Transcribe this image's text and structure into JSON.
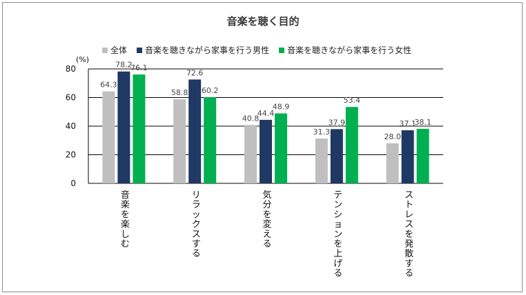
{
  "chart_data": {
    "type": "bar",
    "title": "音楽を聴く目的",
    "unit": "(%)",
    "ylim": [
      0,
      80
    ],
    "yticks": [
      0,
      20,
      40,
      60,
      80
    ],
    "grid": true,
    "legend_position": "top",
    "categories": [
      "音楽を楽しむ",
      "リラックスする",
      "気分を変える",
      "テンションを上げる",
      "ストレスを発散する"
    ],
    "series": [
      {
        "name": "全体",
        "color": "#bfbfbf",
        "values": [
          64.3,
          58.8,
          40.8,
          31.3,
          28.0
        ],
        "labels": [
          "64.3",
          "58.8",
          "40.8",
          "31.3",
          "28.0"
        ]
      },
      {
        "name": "音楽を聴きながら家事を行う男性",
        "color": "#1f3864",
        "values": [
          78.2,
          72.6,
          44.4,
          37.9,
          37.1
        ],
        "labels": [
          "78.2",
          "72.6",
          "44.4",
          "37.9",
          "37.1"
        ]
      },
      {
        "name": "音楽を聴きながら家事を行う女性",
        "color": "#00b050",
        "values": [
          76.1,
          60.2,
          48.9,
          53.4,
          38.1
        ],
        "labels": [
          "76.1",
          "60.2",
          "48.9",
          "53.4",
          "38.1"
        ]
      }
    ]
  }
}
